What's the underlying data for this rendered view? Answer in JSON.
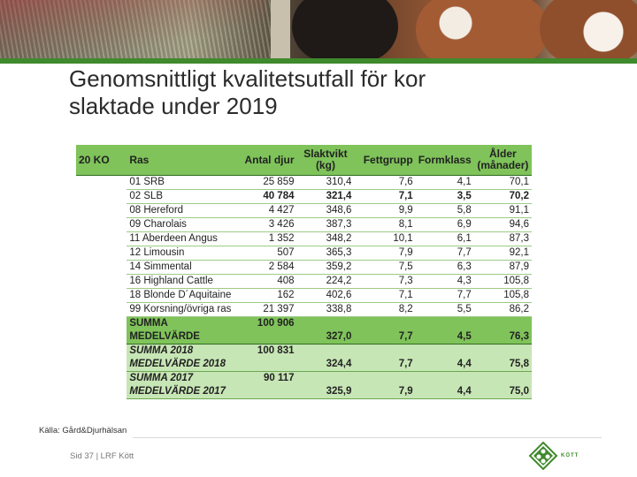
{
  "title": {
    "line1": "Genomsnittligt kvalitetsutfall för kor",
    "line2": "slaktade under 2019"
  },
  "table": {
    "headers": {
      "group": "20 KO",
      "ras": "Ras",
      "antal": "Antal djur",
      "slaktvikt_1": "Slaktvikt",
      "slaktvikt_2": "(kg)",
      "fettgrupp": "Fettgrupp",
      "formklass": "Formklass",
      "alder_1": "Ålder",
      "alder_2": "(månader)"
    },
    "rows": [
      {
        "ras": "01 SRB",
        "antal": "25 859",
        "slaktvikt": "310,4",
        "fettgrupp": "7,6",
        "formklass": "4,1",
        "alder": "70,1",
        "bold": false
      },
      {
        "ras": "02 SLB",
        "antal": "40 784",
        "slaktvikt": "321,4",
        "fettgrupp": "7,1",
        "formklass": "3,5",
        "alder": "70,2",
        "bold": true
      },
      {
        "ras": "08 Hereford",
        "antal": "4 427",
        "slaktvikt": "348,6",
        "fettgrupp": "9,9",
        "formklass": "5,8",
        "alder": "91,1",
        "bold": false
      },
      {
        "ras": "09 Charolais",
        "antal": "3 426",
        "slaktvikt": "387,3",
        "fettgrupp": "8,1",
        "formklass": "6,9",
        "alder": "94,6",
        "bold": false
      },
      {
        "ras": "11 Aberdeen Angus",
        "antal": "1 352",
        "slaktvikt": "348,2",
        "fettgrupp": "10,1",
        "formklass": "6,1",
        "alder": "87,3",
        "bold": false
      },
      {
        "ras": "12 Limousin",
        "antal": "507",
        "slaktvikt": "365,3",
        "fettgrupp": "7,9",
        "formklass": "7,7",
        "alder": "92,1",
        "bold": false
      },
      {
        "ras": "14 Simmental",
        "antal": "2 584",
        "slaktvikt": "359,2",
        "fettgrupp": "7,5",
        "formklass": "6,3",
        "alder": "87,9",
        "bold": false
      },
      {
        "ras": "16 Highland Cattle",
        "antal": "408",
        "slaktvikt": "224,2",
        "fettgrupp": "7,3",
        "formklass": "4,3",
        "alder": "105,8",
        "bold": false
      },
      {
        "ras": "18 Blonde D´Aquitaine",
        "antal": "162",
        "slaktvikt": "402,6",
        "fettgrupp": "7,1",
        "formklass": "7,7",
        "alder": "105,8",
        "bold": false
      },
      {
        "ras": "99 Korsning/övriga ras",
        "antal": "21 397",
        "slaktvikt": "338,8",
        "fettgrupp": "8,2",
        "formklass": "5,5",
        "alder": "86,2",
        "bold": false
      }
    ],
    "summa_label": "SUMMA",
    "summa_antal": "100 906",
    "medel_label": "MEDELVÄRDE",
    "medel": {
      "slaktvikt": "327,0",
      "fettgrupp": "7,7",
      "formklass": "4,5",
      "alder": "76,3"
    },
    "summa2018_label": "SUMMA 2018",
    "summa2018_antal": "100 831",
    "medel2018_label": "MEDELVÄRDE 2018",
    "medel2018": {
      "slaktvikt": "324,4",
      "fettgrupp": "7,7",
      "formklass": "4,4",
      "alder": "75,8"
    },
    "summa2017_label": "SUMMA 2017",
    "summa2017_antal": "90 117",
    "medel2017_label": "MEDELVÄRDE 2017",
    "medel2017": {
      "slaktvikt": "325,9",
      "fettgrupp": "7,9",
      "formklass": "4,4",
      "alder": "75,0"
    }
  },
  "source": "Källa: Gård&Djurhälsan",
  "footer": "Sid 37 | LRF Kött",
  "logo_text": "KÖTT",
  "colors": {
    "header_green": "#7fc35a",
    "light_green": "#c7e6b5",
    "accent_green": "#3f8a2c"
  }
}
